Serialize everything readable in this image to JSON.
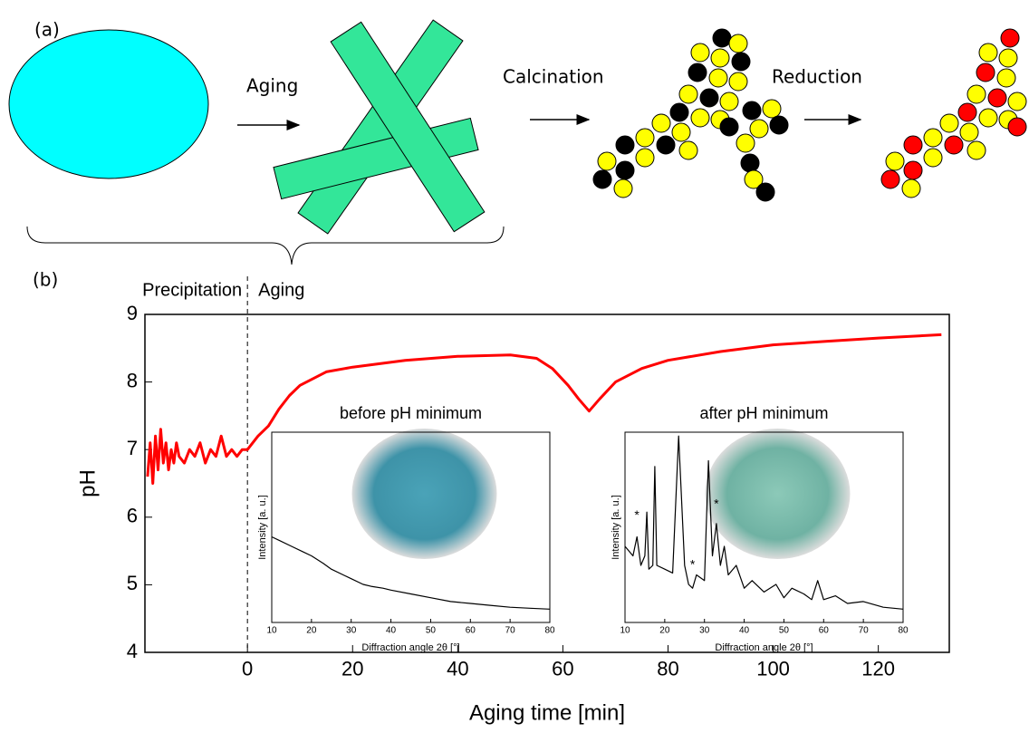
{
  "panel_a": {
    "label": "(a)",
    "steps": [
      "Aging",
      "Calcination",
      "Reduction"
    ]
  },
  "panel_b": {
    "label": "(b)"
  },
  "chart_data": [
    {
      "type": "line",
      "xlabel": "Aging time [min]",
      "ylabel": "pH",
      "phase_labels": [
        "Precipitation",
        "Aging"
      ],
      "divider_x": 0,
      "xlim": [
        -19.5,
        133.5
      ],
      "ylim": [
        4,
        9
      ],
      "xticks": [
        0,
        20,
        40,
        60,
        80,
        100,
        120
      ],
      "yticks": [
        4,
        5,
        6,
        7,
        8,
        9
      ],
      "color": "#ff0000",
      "x": [
        -19,
        -18.5,
        -18,
        -17.5,
        -17,
        -16.5,
        -16,
        -15.5,
        -15,
        -14.5,
        -14,
        -13.5,
        -13,
        -12,
        -11,
        -10,
        -9,
        -8,
        -7,
        -6,
        -5,
        -4,
        -3,
        -2,
        -1,
        0,
        2,
        4,
        6,
        8,
        10,
        15,
        20,
        30,
        40,
        50,
        55,
        58,
        61,
        63,
        65,
        67,
        70,
        75,
        80,
        90,
        100,
        110,
        120,
        132
      ],
      "values": [
        6.6,
        7.1,
        6.5,
        7.2,
        6.7,
        7.3,
        6.8,
        7.1,
        6.7,
        7.0,
        6.8,
        7.1,
        6.9,
        6.8,
        7.0,
        6.9,
        7.1,
        6.8,
        7.0,
        6.9,
        7.2,
        6.9,
        7.0,
        6.9,
        7.0,
        7.0,
        7.2,
        7.35,
        7.6,
        7.8,
        7.95,
        8.15,
        8.22,
        8.32,
        8.38,
        8.4,
        8.35,
        8.2,
        7.95,
        7.75,
        7.57,
        7.75,
        8.0,
        8.2,
        8.32,
        8.45,
        8.55,
        8.6,
        8.65,
        8.7
      ]
    },
    {
      "type": "line",
      "title": "before pH minimum",
      "xlabel": "Diffraction angle 2θ [°]",
      "ylabel": "Intensity [a. u.]",
      "xlim": [
        10,
        80
      ],
      "ylim": [
        0,
        100
      ],
      "xticks": [
        10,
        20,
        30,
        40,
        50,
        60,
        70,
        80
      ],
      "color": "#000000",
      "x": [
        10,
        12,
        15,
        18,
        20,
        23,
        25,
        28,
        30,
        33,
        35,
        38,
        40,
        45,
        50,
        55,
        60,
        65,
        70,
        75,
        80
      ],
      "values": [
        45,
        43,
        40,
        37,
        35,
        31,
        28,
        25,
        23,
        20,
        19,
        18,
        17,
        15,
        13,
        11,
        10,
        9,
        8,
        7.5,
        7
      ]
    },
    {
      "type": "line",
      "title": "after pH minimum",
      "xlabel": "Diffraction angle 2θ [°]",
      "ylabel": "Intensity [a. u.]",
      "xlim": [
        10,
        80
      ],
      "ylim": [
        0,
        100
      ],
      "xticks": [
        10,
        20,
        30,
        40,
        50,
        60,
        70,
        80
      ],
      "color": "#000000",
      "x": [
        10,
        12,
        13,
        14,
        15,
        15.5,
        16,
        17,
        17.5,
        18,
        20,
        22,
        23.5,
        25,
        26,
        27,
        28,
        30,
        31,
        32,
        33,
        34,
        35,
        36,
        38,
        40,
        42,
        45,
        48,
        50,
        52,
        55,
        57,
        58.5,
        60,
        63,
        66,
        70,
        75,
        80
      ],
      "values": [
        40,
        35,
        45,
        30,
        35,
        58,
        28,
        30,
        82,
        30,
        28,
        26,
        98,
        30,
        20,
        18,
        25,
        22,
        85,
        35,
        52,
        30,
        40,
        25,
        30,
        18,
        22,
        16,
        20,
        13,
        18,
        15,
        12,
        22,
        12,
        14,
        10,
        11,
        8,
        7
      ],
      "annotations": [
        {
          "text": "*",
          "x": 13,
          "y": 56
        },
        {
          "text": "*",
          "x": 27,
          "y": 30
        },
        {
          "text": "*",
          "x": 33,
          "y": 62
        }
      ]
    }
  ]
}
